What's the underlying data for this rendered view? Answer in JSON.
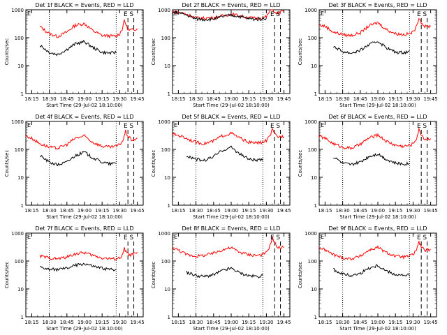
{
  "figure": {
    "xlabel": "Start Time (29-Jul-02 18:10:00)",
    "ylabel": "Counts/sec",
    "x_tick_labels": [
      "18:15",
      "18:30",
      "18:45",
      "19:00",
      "19:15",
      "19:30",
      "19:45"
    ],
    "y_tick_labels": [
      "1",
      "10",
      "100",
      "1000"
    ],
    "colors": {
      "events": "#000000",
      "lld": "#ff0000"
    }
  },
  "chart_data": [
    {
      "type": "line",
      "title": "Det 1f BLACK = Events, RED = LLD",
      "xlabel": "Start Time (29-Jul-02 18:10:00)",
      "ylabel": "Counts/sec",
      "x_range": [
        "18:10",
        "19:50"
      ],
      "ylim": [
        1,
        1000
      ],
      "yscale": "log",
      "markers": {
        "E": "19:35",
        "S": "19:40"
      },
      "dotted_lines": [
        "18:30",
        "19:27"
      ],
      "dashed_lines": [
        "19:37",
        "19:42"
      ],
      "x": [
        "18:22",
        "18:30",
        "18:37",
        "18:45",
        "18:52",
        "19:00",
        "19:07",
        "19:15",
        "19:22",
        "19:27",
        "19:30",
        "19:32",
        "19:34",
        "19:36",
        "19:38",
        "19:40",
        "19:42",
        "19:45"
      ],
      "series": [
        {
          "name": "LLD",
          "values": [
            250,
            140,
            110,
            160,
            280,
            320,
            180,
            120,
            115,
            115,
            140,
            200,
            420,
            250,
            180,
            190,
            200,
            210
          ]
        },
        {
          "name": "Events",
          "values": [
            55,
            30,
            25,
            38,
            60,
            72,
            45,
            30,
            28,
            30,
            null,
            null,
            null,
            null,
            null,
            null,
            null,
            null
          ]
        }
      ]
    },
    {
      "type": "line",
      "title": "Det 2f BLACK = Events, RED = LLD",
      "xlabel": "Start Time (29-Jul-02 18:10:00)",
      "ylabel": "Counts/sec",
      "x_range": [
        "18:10",
        "19:50"
      ],
      "ylim": [
        1,
        1000
      ],
      "yscale": "log",
      "markers": {
        "E": "19:35",
        "S": "19:40"
      },
      "dotted_lines": [
        "18:30",
        "19:27"
      ],
      "dashed_lines": [
        "19:37",
        "19:42"
      ],
      "x": [
        "18:10",
        "18:15",
        "18:22",
        "18:30",
        "18:37",
        "18:45",
        "18:52",
        "19:00",
        "19:07",
        "19:15",
        "19:22",
        "19:27",
        "19:30",
        "19:33",
        "19:35",
        "19:38",
        "19:41",
        "19:45"
      ],
      "series": [
        {
          "name": "LLD",
          "values": [
            850,
            820,
            700,
            520,
            500,
            520,
            600,
            700,
            620,
            520,
            500,
            520,
            560,
            900,
            1100,
            700,
            800,
            900
          ]
        },
        {
          "name": "Events",
          "values": [
            800,
            780,
            650,
            470,
            450,
            470,
            560,
            650,
            580,
            480,
            460,
            480,
            500,
            null,
            null,
            null,
            null,
            null
          ]
        }
      ]
    },
    {
      "type": "line",
      "title": "Det 3f BLACK = Events, RED = LLD",
      "xlabel": "Start Time (29-Jul-02 18:10:00)",
      "ylabel": "Counts/sec",
      "x_range": [
        "18:10",
        "19:50"
      ],
      "ylim": [
        1,
        1000
      ],
      "yscale": "log",
      "markers": {
        "E": "19:35",
        "S": "19:40"
      },
      "dotted_lines": [
        "18:30",
        "19:27"
      ],
      "dashed_lines": [
        "19:37",
        "19:42"
      ],
      "x": [
        "18:10",
        "18:15",
        "18:22",
        "18:30",
        "18:37",
        "18:45",
        "18:52",
        "19:00",
        "19:07",
        "19:15",
        "19:22",
        "19:27",
        "19:30",
        "19:33",
        "19:35",
        "19:37",
        "19:40",
        "19:45"
      ],
      "series": [
        {
          "name": "LLD",
          "values": [
            280,
            260,
            160,
            130,
            120,
            150,
            260,
            350,
            200,
            140,
            130,
            140,
            160,
            250,
            550,
            350,
            250,
            260
          ]
        },
        {
          "name": "Events",
          "values": [
            null,
            null,
            50,
            32,
            28,
            35,
            55,
            75,
            45,
            30,
            30,
            32,
            null,
            null,
            null,
            null,
            null,
            null
          ]
        }
      ]
    },
    {
      "type": "line",
      "title": "Det 4f BLACK = Events, RED = LLD",
      "xlabel": "Start Time (29-Jul-02 18:10:00)",
      "ylabel": "Counts/sec",
      "x_range": [
        "18:10",
        "19:50"
      ],
      "ylim": [
        1,
        1000
      ],
      "yscale": "log",
      "markers": {
        "E": "19:35",
        "S": "19:40"
      },
      "dotted_lines": [
        "18:30",
        "19:27"
      ],
      "dashed_lines": [
        "19:37",
        "19:42"
      ],
      "x": [
        "18:10",
        "18:15",
        "18:22",
        "18:30",
        "18:37",
        "18:45",
        "18:52",
        "19:00",
        "19:07",
        "19:15",
        "19:22",
        "19:27",
        "19:30",
        "19:33",
        "19:35",
        "19:37",
        "19:40",
        "19:45"
      ],
      "series": [
        {
          "name": "LLD",
          "values": [
            300,
            250,
            160,
            120,
            110,
            150,
            250,
            300,
            180,
            130,
            120,
            130,
            150,
            220,
            450,
            300,
            220,
            230
          ]
        },
        {
          "name": "Events",
          "values": [
            null,
            null,
            60,
            35,
            28,
            35,
            60,
            80,
            50,
            35,
            30,
            32,
            null,
            null,
            null,
            null,
            null,
            null
          ]
        }
      ]
    },
    {
      "type": "line",
      "title": "Det 5f BLACK = Events, RED = LLD",
      "xlabel": "Start Time (29-Jul-02 18:10:00)",
      "ylabel": "Counts/sec",
      "x_range": [
        "18:10",
        "19:50"
      ],
      "ylim": [
        1,
        1000
      ],
      "yscale": "log",
      "markers": {
        "E": "19:35",
        "S": "19:40"
      },
      "dotted_lines": [
        "18:30",
        "19:27"
      ],
      "dashed_lines": [
        "19:37",
        "19:42"
      ],
      "x": [
        "18:10",
        "18:15",
        "18:22",
        "18:30",
        "18:37",
        "18:45",
        "18:52",
        "19:00",
        "19:07",
        "19:15",
        "19:22",
        "19:27",
        "19:30",
        "19:33",
        "19:35",
        "19:37",
        "19:40",
        "19:45"
      ],
      "series": [
        {
          "name": "LLD",
          "values": [
            350,
            320,
            250,
            180,
            160,
            200,
            300,
            380,
            260,
            180,
            170,
            180,
            210,
            300,
            500,
            350,
            280,
            300
          ]
        },
        {
          "name": "Events",
          "values": [
            null,
            null,
            60,
            45,
            40,
            55,
            90,
            120,
            70,
            45,
            40,
            42,
            null,
            null,
            null,
            null,
            null,
            null
          ]
        }
      ]
    },
    {
      "type": "line",
      "title": "Det 6f BLACK = Events, RED = LLD",
      "xlabel": "Start Time (29-Jul-02 18:10:00)",
      "ylabel": "Counts/sec",
      "x_range": [
        "18:10",
        "19:50"
      ],
      "ylim": [
        1,
        1000
      ],
      "yscale": "log",
      "markers": {
        "E": "19:35",
        "S": "19:40"
      },
      "dotted_lines": [
        "18:30",
        "19:27"
      ],
      "dashed_lines": [
        "19:37",
        "19:42"
      ],
      "x": [
        "18:10",
        "18:15",
        "18:22",
        "18:30",
        "18:37",
        "18:45",
        "18:52",
        "19:00",
        "19:07",
        "19:15",
        "19:22",
        "19:27",
        "19:30",
        "19:33",
        "19:35",
        "19:37",
        "19:40",
        "19:45"
      ],
      "series": [
        {
          "name": "LLD",
          "values": [
            300,
            250,
            160,
            120,
            110,
            150,
            250,
            330,
            200,
            140,
            130,
            140,
            160,
            250,
            500,
            350,
            230,
            240
          ]
        },
        {
          "name": "Events",
          "values": [
            null,
            null,
            55,
            32,
            28,
            35,
            55,
            70,
            45,
            32,
            30,
            32,
            null,
            null,
            null,
            null,
            null,
            null
          ]
        }
      ]
    },
    {
      "type": "line",
      "title": "Det 7f BLACK = Events, RED = LLD",
      "xlabel": "Start Time (29-Jul-02 18:10:00)",
      "ylabel": "Counts/sec",
      "x_range": [
        "18:10",
        "19:50"
      ],
      "ylim": [
        1,
        1000
      ],
      "yscale": "log",
      "markers": {
        "E": "19:35",
        "S": "19:40"
      },
      "dotted_lines": [
        "18:30",
        "19:27"
      ],
      "dashed_lines": [
        "19:37",
        "19:42"
      ],
      "x": [
        "18:22",
        "18:30",
        "18:37",
        "18:45",
        "18:52",
        "19:00",
        "19:07",
        "19:15",
        "19:22",
        "19:27",
        "19:30",
        "19:32",
        "19:34",
        "19:36",
        "19:38",
        "19:40",
        "19:42",
        "19:45"
      ],
      "series": [
        {
          "name": "LLD",
          "values": [
            150,
            130,
            120,
            140,
            180,
            200,
            160,
            130,
            120,
            120,
            130,
            150,
            280,
            200,
            160,
            170,
            180,
            190
          ]
        },
        {
          "name": "Events",
          "values": [
            60,
            50,
            50,
            55,
            70,
            80,
            65,
            55,
            50,
            50,
            null,
            null,
            null,
            null,
            null,
            null,
            null,
            null
          ]
        }
      ]
    },
    {
      "type": "line",
      "title": "Det 8f BLACK = Events, RED = LLD",
      "xlabel": "Start Time (29-Jul-02 18:10:00)",
      "ylabel": "Counts/sec",
      "x_range": [
        "18:10",
        "19:50"
      ],
      "ylim": [
        1,
        1000
      ],
      "yscale": "log",
      "markers": {
        "E": "19:35",
        "S": "19:40"
      },
      "dotted_lines": [
        "18:30",
        "19:27"
      ],
      "dashed_lines": [
        "19:37",
        "19:42"
      ],
      "x": [
        "18:10",
        "18:15",
        "18:22",
        "18:30",
        "18:37",
        "18:45",
        "18:52",
        "19:00",
        "19:07",
        "19:15",
        "19:22",
        "19:27",
        "19:30",
        "19:33",
        "19:35",
        "19:37",
        "19:40",
        "19:45"
      ],
      "series": [
        {
          "name": "LLD",
          "values": [
            300,
            250,
            170,
            150,
            160,
            190,
            250,
            300,
            210,
            170,
            160,
            170,
            200,
            350,
            700,
            450,
            300,
            320
          ]
        },
        {
          "name": "Events",
          "values": [
            null,
            null,
            40,
            30,
            28,
            32,
            45,
            55,
            38,
            30,
            28,
            30,
            null,
            null,
            null,
            null,
            null,
            null
          ]
        }
      ]
    },
    {
      "type": "line",
      "title": "Det 9f BLACK = Events, RED = LLD",
      "xlabel": "Start Time (29-Jul-02 18:10:00)",
      "ylabel": "Counts/sec",
      "x_range": [
        "18:10",
        "19:50"
      ],
      "ylim": [
        1,
        1000
      ],
      "yscale": "log",
      "markers": {
        "E": "19:35",
        "S": "19:40"
      },
      "dotted_lines": [
        "18:30",
        "19:27"
      ],
      "dashed_lines": [
        "19:37",
        "19:42"
      ],
      "x": [
        "18:10",
        "18:15",
        "18:22",
        "18:30",
        "18:37",
        "18:45",
        "18:52",
        "19:00",
        "19:07",
        "19:15",
        "19:22",
        "19:27",
        "19:30",
        "19:33",
        "19:35",
        "19:37",
        "19:40",
        "19:45"
      ],
      "series": [
        {
          "name": "LLD",
          "values": [
            300,
            250,
            170,
            130,
            120,
            150,
            240,
            310,
            200,
            150,
            140,
            150,
            170,
            260,
            480,
            330,
            240,
            250
          ]
        },
        {
          "name": "Events",
          "values": [
            null,
            null,
            50,
            35,
            30,
            36,
            55,
            70,
            45,
            33,
            30,
            32,
            null,
            null,
            null,
            null,
            null,
            null
          ]
        }
      ]
    }
  ]
}
